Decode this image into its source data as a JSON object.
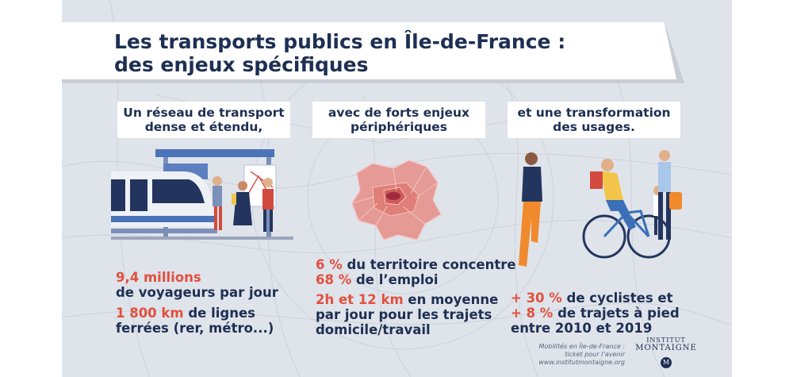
{
  "title": "Les transports publics en Île-de-France :\ndes enjeux spécifiques",
  "columns": [
    {
      "heading": "Un réseau de transport\ndense et étendu,",
      "stats": [
        {
          "highlight": "9,4 millions",
          "text": "de voyageurs par jour"
        },
        {
          "highlight": "1 800 km",
          "text": " de lignes",
          "text2": "ferrées (rer, métro...)"
        }
      ]
    },
    {
      "heading": "avec de forts enjeux\npériphériques",
      "stats": [
        {
          "highlight": "6 %",
          "text": " du territoire concentre"
        },
        {
          "highlight": "68 %",
          "text": " de l’emploi"
        },
        {
          "highlight": "2h et 12 km",
          "text": " en moyenne",
          "text2": "par jour pour les trajets",
          "text3": "domicile/travail"
        }
      ]
    },
    {
      "heading": "et une transformation\ndes usages.",
      "stats": [
        {
          "highlight": "+ 30 %",
          "text": " de cyclistes et"
        },
        {
          "highlight": "+ 8 %",
          "text": " de trajets à pied"
        },
        {
          "text": "entre 2010 et 2019"
        }
      ]
    }
  ],
  "credit": {
    "line1": "Mobilités en Île-de-France :",
    "line2": "ticket pour l’avenir",
    "line3": "www.institutmontaigne.org"
  },
  "logo": {
    "line1": "INSTITUT",
    "line2": "MONTAIGNE",
    "badge": "M"
  },
  "colors": {
    "navy": "#1d2f53",
    "accent": "#e2503e",
    "background": "#dfe3ea"
  }
}
